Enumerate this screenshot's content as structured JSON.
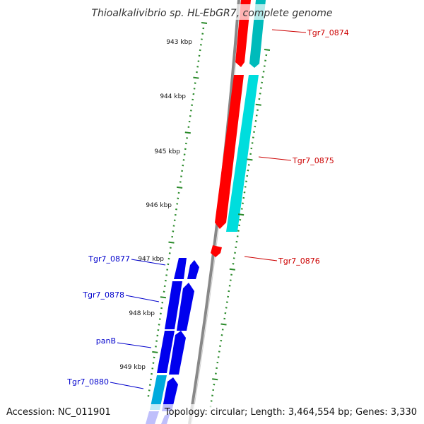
{
  "title": "Thioalkalivibrio sp. HL-EbGR7, complete genome",
  "footer": {
    "accession": "Accession: NC_011901",
    "topology": "Topology: circular; Length: 3,464,554 bp; Genes: 3,330"
  },
  "colors": {
    "background": "#ffffff",
    "backbone": "#888888",
    "tick": "#2a8a2a",
    "forward_gene": "#ff0000",
    "forward_other": "#00cccc",
    "reverse_gene": "#0000ee",
    "reverse_other": "#00aadd",
    "forward_label": "#cc0000",
    "reverse_label": "#0000cc"
  },
  "scale_labels": [
    "943 kbp",
    "944 kbp",
    "945 kbp",
    "946 kbp",
    "947 kbp",
    "948 kbp",
    "949 kbp"
  ],
  "gene_labels": {
    "forward": [
      "Tgr7_0874",
      "Tgr7_0875",
      "Tgr7_0876"
    ],
    "reverse": [
      "Tgr7_0877",
      "Tgr7_0878",
      "panB",
      "Tgr7_0880"
    ]
  }
}
